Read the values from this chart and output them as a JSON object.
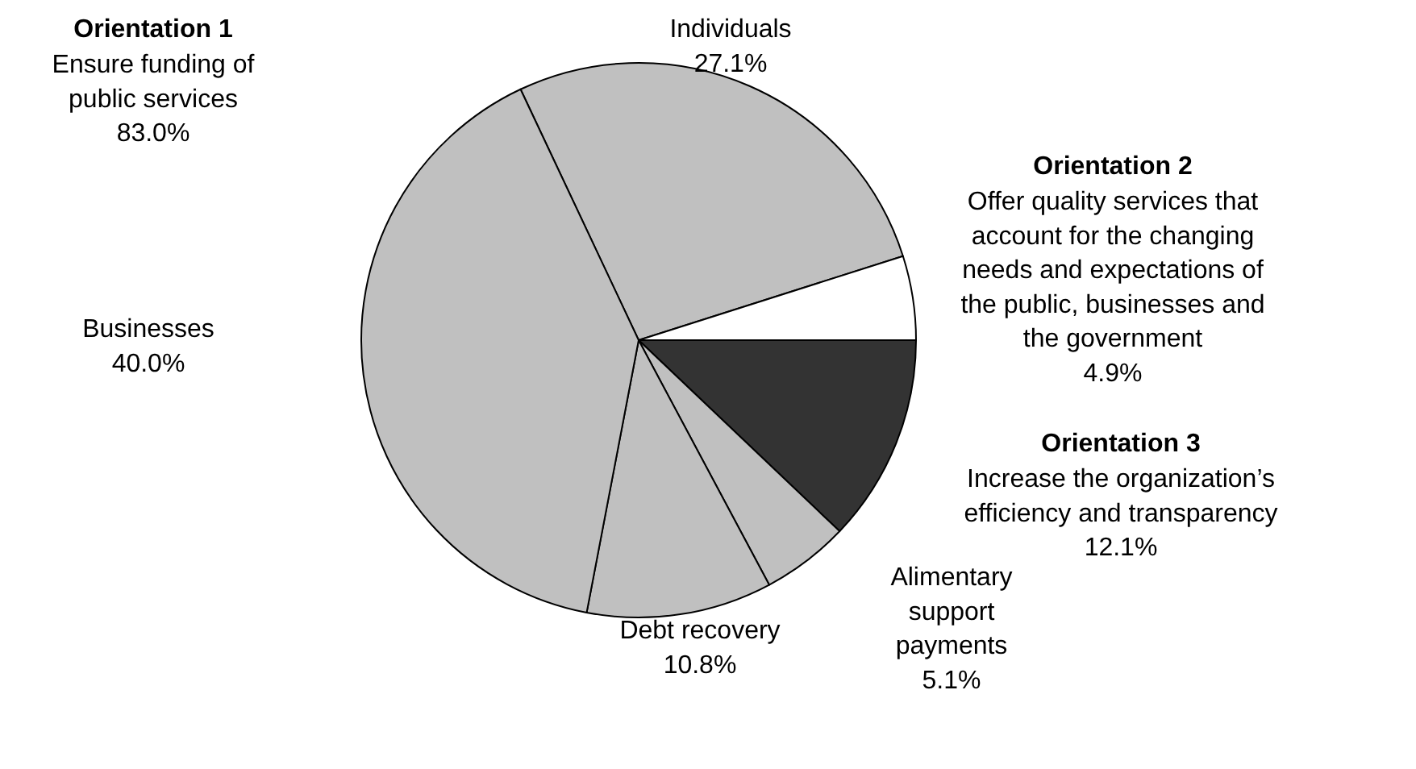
{
  "chart_data": {
    "type": "pie",
    "categories": [
      "Individuals",
      "Offer quality services that\naccount for the changing\nneeds and expectations of\nthe public, businesses and\nthe government",
      "Increase the organization’s\nefficiency and transparency",
      "Alimentary\nsupport\npayments",
      "Debt recovery",
      "Businesses"
    ],
    "values": [
      27.1,
      4.9,
      12.1,
      5.1,
      10.8,
      40.0
    ],
    "value_labels": [
      "27.1%",
      "4.9%",
      "12.1%",
      "5.1%",
      "10.8%",
      "40.0%"
    ],
    "colors": [
      "#c0c0c0",
      "#ffffff",
      "#333333",
      "#c0c0c0",
      "#c0c0c0",
      "#c0c0c0"
    ],
    "annotations": [
      "Orientation 1",
      "Ensure funding of\npublic services\n83.0%",
      "Orientation 2",
      "Orientation 3"
    ],
    "legend": false
  }
}
